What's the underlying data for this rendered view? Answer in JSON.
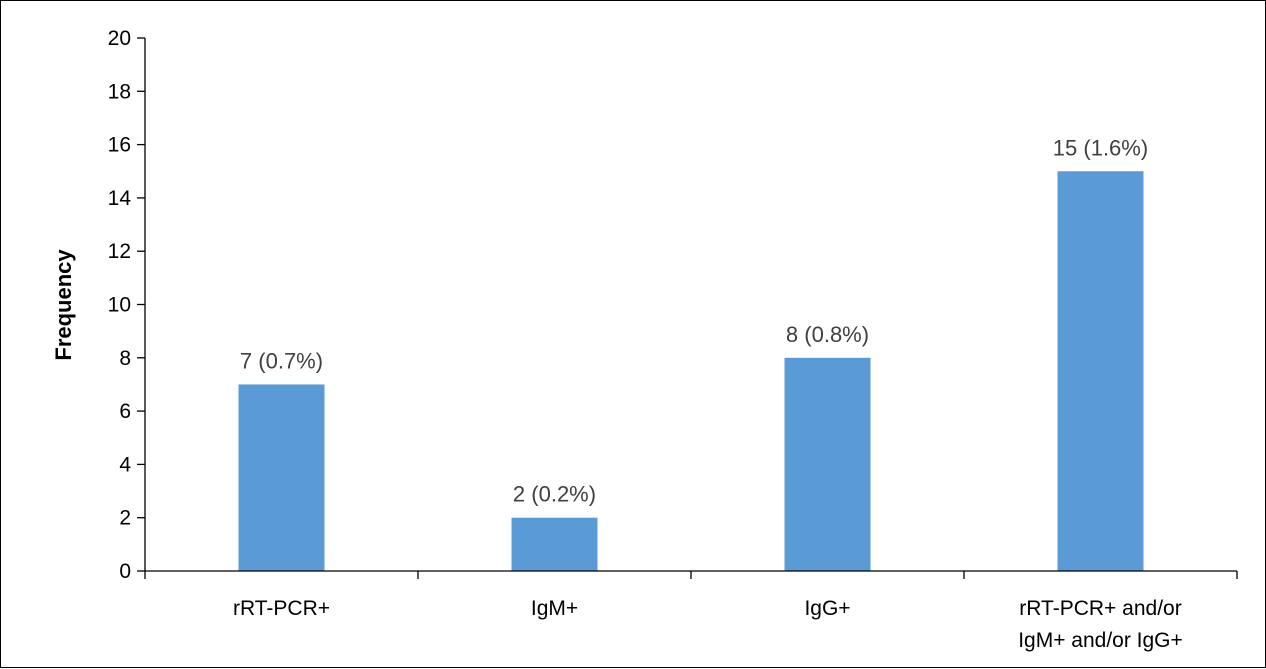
{
  "chart_data": {
    "type": "bar",
    "title": "",
    "xlabel": "",
    "ylabel": "Frequency",
    "ylim": [
      0,
      20
    ],
    "yticks": [
      0,
      2,
      4,
      6,
      8,
      10,
      12,
      14,
      16,
      18,
      20
    ],
    "grid": false,
    "legend": "none",
    "bar_color": "#5B9BD5",
    "categories": [
      [
        "rRT-PCR+"
      ],
      [
        "IgM+"
      ],
      [
        "IgG+"
      ],
      [
        "rRT-PCR+ and/or",
        "IgM+ and/or IgG+"
      ]
    ],
    "values": [
      7,
      2,
      8,
      15
    ],
    "data_labels": [
      "7 (0.7%)",
      "2 (0.2%)",
      "8 (0.8%)",
      "15 (1.6%)"
    ]
  }
}
